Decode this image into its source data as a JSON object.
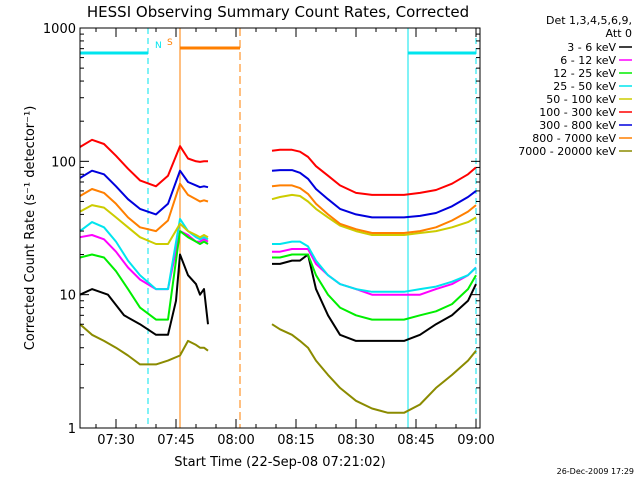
{
  "chart_data": {
    "type": "line",
    "title": "HESSI Observing Summary Count Rates, Corrected",
    "xlabel": "Start Time (22-Sep-08 07:21:02)",
    "ylabel": "Corrected Count Rate (s⁻¹ detector⁻¹)",
    "yscale": "log",
    "ylim": [
      1,
      1000
    ],
    "xlim_minutes_after_07_00": [
      21,
      121
    ],
    "x_tick_labels": [
      "07:30",
      "07:45",
      "08:00",
      "08:15",
      "08:30",
      "08:45",
      "09:00"
    ],
    "x_tick_minutes": [
      30,
      45,
      60,
      75,
      90,
      105,
      120
    ],
    "y_tick_labels": [
      "1",
      "10",
      "100",
      "1000"
    ],
    "y_tick_values": [
      1,
      10,
      100,
      1000
    ],
    "legend_header": [
      "Det 1,3,4,5,6,9,",
      "Att 0"
    ],
    "legend_position": "right",
    "timestamp": "26-Dec-2009 17:29",
    "data_gap_minutes": [
      53,
      69
    ],
    "annotations": {
      "n_label": "N",
      "s_label": "S",
      "night_segments_minutes": [
        [
          21,
          38
        ],
        [
          103,
          120
        ]
      ],
      "night_markers_minutes": [
        38,
        103,
        120
      ],
      "saa_segment_minutes": [
        46,
        61
      ],
      "saa_markers_minutes": [
        46,
        61
      ],
      "night_color": "#00e5ee",
      "saa_color": "#ff7f00"
    },
    "series": [
      {
        "name": "3 - 6 keV",
        "color": "#000000",
        "x": [
          21,
          24,
          28,
          32,
          36,
          40,
          43,
          45,
          46,
          48,
          50,
          51,
          52,
          53,
          69,
          71,
          74,
          76,
          78,
          80,
          83,
          86,
          90,
          94,
          98,
          102,
          106,
          110,
          114,
          118,
          120
        ],
        "y": [
          10,
          11,
          10,
          7,
          6,
          5,
          5,
          9,
          20,
          14,
          12,
          10,
          11,
          6,
          17,
          17,
          18,
          18,
          20,
          11,
          7,
          5,
          4.5,
          4.5,
          4.5,
          4.5,
          5,
          6,
          7,
          9,
          12
        ]
      },
      {
        "name": "6 - 12 keV",
        "color": "#ff00ff",
        "x": [
          21,
          24,
          27,
          30,
          33,
          36,
          40,
          43,
          46,
          48,
          50,
          51,
          52,
          53,
          69,
          71,
          74,
          76,
          78,
          80,
          83,
          86,
          90,
          94,
          98,
          102,
          106,
          110,
          114,
          118,
          120
        ],
        "y": [
          27,
          28,
          26,
          21,
          16,
          13,
          11,
          11,
          30,
          28,
          25,
          25,
          26,
          25,
          21,
          21,
          22,
          22,
          22,
          17,
          14,
          12,
          11,
          10,
          10,
          10,
          10,
          11,
          12,
          14,
          16
        ]
      },
      {
        "name": "12 - 25 keV",
        "color": "#00ee00",
        "x": [
          21,
          24,
          27,
          30,
          33,
          36,
          40,
          43,
          46,
          48,
          50,
          51,
          52,
          53,
          69,
          71,
          74,
          76,
          78,
          80,
          83,
          86,
          90,
          94,
          98,
          102,
          106,
          110,
          114,
          118,
          120
        ],
        "y": [
          19,
          20,
          19,
          15,
          11,
          8,
          6.5,
          6.5,
          30,
          27,
          25,
          24,
          25,
          24,
          19,
          19,
          20,
          20,
          20,
          14,
          10,
          8,
          7,
          6.5,
          6.5,
          6.5,
          7,
          7.5,
          8.5,
          11,
          14
        ]
      },
      {
        "name": "25 - 50 keV",
        "color": "#00e5ee",
        "x": [
          21,
          24,
          27,
          30,
          33,
          36,
          40,
          43,
          46,
          48,
          50,
          51,
          52,
          53,
          69,
          71,
          74,
          76,
          78,
          80,
          83,
          86,
          90,
          94,
          98,
          102,
          106,
          110,
          114,
          118,
          120
        ],
        "y": [
          30,
          35,
          32,
          25,
          18,
          14,
          11,
          11,
          37,
          30,
          27,
          26,
          27,
          26,
          24,
          24,
          25,
          25,
          23,
          18,
          14,
          12,
          11,
          10.5,
          10.5,
          10.5,
          11,
          11.5,
          12.5,
          14,
          16
        ]
      },
      {
        "name": "50 - 100 keV",
        "color": "#cccc00",
        "x": [
          21,
          24,
          27,
          30,
          33,
          36,
          40,
          43,
          46,
          48,
          50,
          51,
          52,
          53,
          69,
          71,
          74,
          76,
          78,
          80,
          83,
          86,
          90,
          94,
          98,
          102,
          106,
          110,
          114,
          118,
          120
        ],
        "y": [
          42,
          47,
          45,
          38,
          32,
          27,
          24,
          24,
          34,
          30,
          28,
          27,
          28,
          27,
          52,
          54,
          56,
          55,
          50,
          44,
          38,
          33,
          30,
          28,
          28,
          28,
          29,
          30,
          32,
          35,
          38
        ]
      },
      {
        "name": "100 - 300 keV",
        "color": "#ff0000",
        "x": [
          21,
          24,
          27,
          30,
          33,
          36,
          40,
          43,
          46,
          48,
          50,
          51,
          52,
          53,
          69,
          71,
          74,
          76,
          78,
          80,
          83,
          86,
          90,
          94,
          98,
          102,
          106,
          110,
          114,
          118,
          120
        ],
        "y": [
          128,
          145,
          135,
          110,
          88,
          72,
          65,
          78,
          130,
          105,
          100,
          99,
          100,
          100,
          120,
          122,
          122,
          118,
          108,
          92,
          78,
          66,
          58,
          56,
          56,
          56,
          58,
          61,
          68,
          80,
          90
        ]
      },
      {
        "name": "300 - 800 keV",
        "color": "#0000dd",
        "x": [
          21,
          24,
          27,
          30,
          33,
          36,
          40,
          43,
          46,
          48,
          50,
          51,
          52,
          53,
          69,
          71,
          74,
          76,
          78,
          80,
          83,
          86,
          90,
          94,
          98,
          102,
          106,
          110,
          114,
          118,
          120
        ],
        "y": [
          75,
          85,
          80,
          65,
          52,
          44,
          40,
          48,
          85,
          70,
          66,
          64,
          65,
          64,
          85,
          86,
          86,
          82,
          74,
          62,
          52,
          44,
          40,
          38,
          38,
          38,
          39,
          41,
          46,
          54,
          60
        ]
      },
      {
        "name": "800 - 7000 keV",
        "color": "#ff7f00",
        "x": [
          21,
          24,
          27,
          30,
          33,
          36,
          40,
          43,
          46,
          48,
          50,
          51,
          52,
          53,
          69,
          71,
          74,
          76,
          78,
          80,
          83,
          86,
          90,
          94,
          98,
          102,
          106,
          110,
          114,
          118,
          120
        ],
        "y": [
          55,
          62,
          58,
          48,
          38,
          32,
          30,
          36,
          68,
          56,
          52,
          50,
          51,
          50,
          65,
          66,
          66,
          63,
          57,
          48,
          40,
          34,
          31,
          29,
          29,
          29,
          30,
          32,
          36,
          42,
          47
        ]
      },
      {
        "name": "7000 - 20000 keV",
        "color": "#8b8b00",
        "x": [
          21,
          24,
          27,
          30,
          33,
          36,
          40,
          43,
          46,
          48,
          50,
          51,
          52,
          53,
          69,
          71,
          74,
          76,
          78,
          80,
          83,
          86,
          90,
          94,
          98,
          102,
          106,
          110,
          114,
          118,
          120
        ],
        "y": [
          6,
          5,
          4.5,
          4,
          3.5,
          3,
          3,
          3.2,
          3.5,
          4.5,
          4.2,
          4,
          4,
          3.8,
          6,
          5.5,
          5,
          4.5,
          4,
          3.2,
          2.5,
          2,
          1.6,
          1.4,
          1.3,
          1.3,
          1.5,
          2,
          2.5,
          3.2,
          3.8
        ]
      }
    ]
  }
}
